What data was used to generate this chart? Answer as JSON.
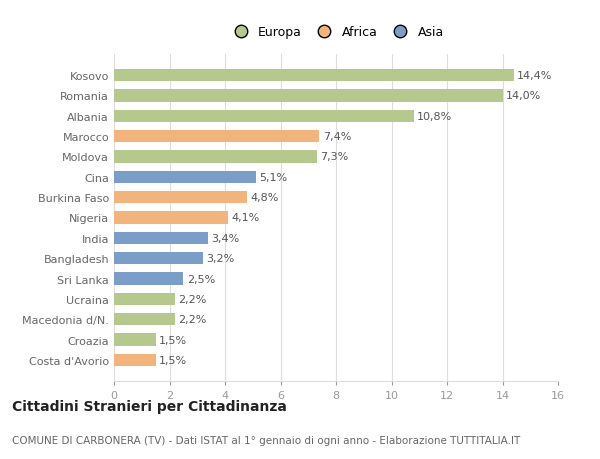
{
  "categories": [
    "Costa d'Avorio",
    "Croazia",
    "Macedonia d/N.",
    "Ucraina",
    "Sri Lanka",
    "Bangladesh",
    "India",
    "Nigeria",
    "Burkina Faso",
    "Cina",
    "Moldova",
    "Marocco",
    "Albania",
    "Romania",
    "Kosovo"
  ],
  "values": [
    1.5,
    1.5,
    2.2,
    2.2,
    2.5,
    3.2,
    3.4,
    4.1,
    4.8,
    5.1,
    7.3,
    7.4,
    10.8,
    14.0,
    14.4
  ],
  "labels": [
    "1,5%",
    "1,5%",
    "2,2%",
    "2,2%",
    "2,5%",
    "3,2%",
    "3,4%",
    "4,1%",
    "4,8%",
    "5,1%",
    "7,3%",
    "7,4%",
    "10,8%",
    "14,0%",
    "14,4%"
  ],
  "continents": [
    "Africa",
    "Europa",
    "Europa",
    "Europa",
    "Asia",
    "Asia",
    "Asia",
    "Africa",
    "Africa",
    "Asia",
    "Europa",
    "Africa",
    "Europa",
    "Europa",
    "Europa"
  ],
  "colors": {
    "Europa": "#b5c98e",
    "Africa": "#f0b47c",
    "Asia": "#7b9ec9"
  },
  "legend_labels": [
    "Europa",
    "Africa",
    "Asia"
  ],
  "title": "Cittadini Stranieri per Cittadinanza",
  "subtitle": "COMUNE DI CARBONERA (TV) - Dati ISTAT al 1° gennaio di ogni anno - Elaborazione TUTTITALIA.IT",
  "xlim": [
    0,
    16
  ],
  "xticks": [
    0,
    2,
    4,
    6,
    8,
    10,
    12,
    14,
    16
  ],
  "background_color": "#ffffff",
  "grid_color": "#dddddd",
  "bar_height": 0.6,
  "label_fontsize": 8,
  "title_fontsize": 10,
  "subtitle_fontsize": 7.5,
  "tick_fontsize": 8,
  "legend_fontsize": 9,
  "ytick_fontsize": 8
}
